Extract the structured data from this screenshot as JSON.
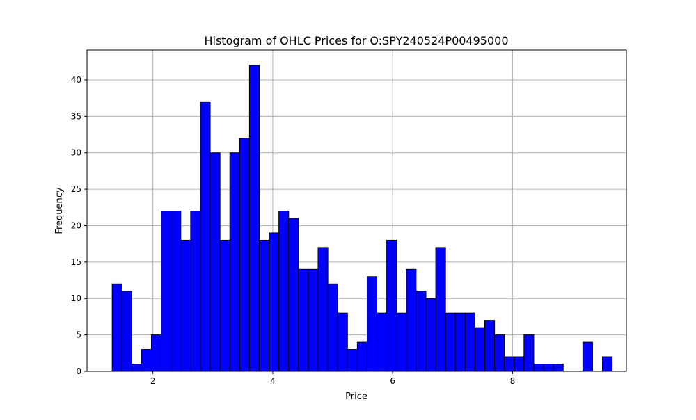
{
  "chart_data": {
    "type": "bar",
    "title": "Histogram of OHLC Prices for O:SPY240524P00495000",
    "xlabel": "Price",
    "ylabel": "Frequency",
    "xlim": [
      0.9,
      9.9
    ],
    "ylim": [
      0,
      44.1
    ],
    "xticks": [
      2,
      4,
      6,
      8
    ],
    "yticks": [
      0,
      5,
      10,
      15,
      20,
      25,
      30,
      35,
      40
    ],
    "grid": true,
    "bar_color": "#0000ff",
    "edge_color": "#000000",
    "bin_start": 1.32,
    "bin_width": 0.1636,
    "values": [
      12,
      11,
      1,
      3,
      5,
      22,
      22,
      18,
      22,
      37,
      30,
      18,
      30,
      32,
      42,
      18,
      19,
      22,
      21,
      14,
      14,
      17,
      12,
      8,
      3,
      4,
      13,
      8,
      18,
      8,
      14,
      11,
      10,
      17,
      8,
      8,
      8,
      6,
      7,
      5,
      2,
      2,
      5,
      1,
      1,
      1,
      0,
      0,
      4,
      0,
      2
    ]
  }
}
